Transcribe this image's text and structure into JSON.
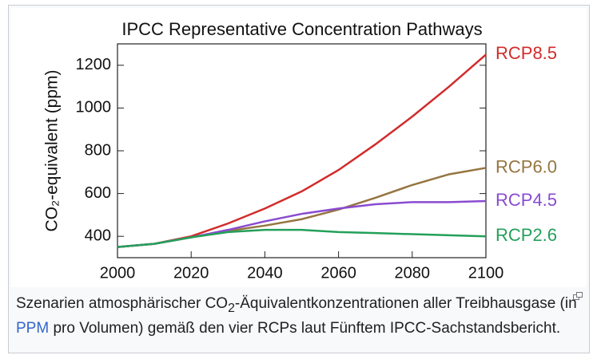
{
  "chart_data": {
    "type": "line",
    "title": "IPCC Representative Concentration Pathways",
    "y_label": "CO₂-equivalent (ppm)",
    "x": [
      2000,
      2010,
      2020,
      2030,
      2040,
      2050,
      2060,
      2070,
      2080,
      2090,
      2100
    ],
    "series": [
      {
        "name": "RCP8.5",
        "color": "#d22b2b",
        "values": [
          350,
          365,
          400,
          460,
          530,
          610,
          710,
          830,
          960,
          1100,
          1250
        ]
      },
      {
        "name": "RCP6.0",
        "color": "#957540",
        "values": [
          350,
          365,
          395,
          425,
          450,
          480,
          525,
          580,
          640,
          690,
          720
        ]
      },
      {
        "name": "RCP4.5",
        "color": "#8a4bd0",
        "values": [
          350,
          365,
          395,
          430,
          470,
          505,
          530,
          550,
          560,
          560,
          565
        ]
      },
      {
        "name": "RCP2.6",
        "color": "#23a05a",
        "values": [
          350,
          365,
          395,
          420,
          430,
          430,
          420,
          415,
          410,
          405,
          400
        ]
      }
    ],
    "xlim": [
      2000,
      2100
    ],
    "xticks": [
      2000,
      2020,
      2040,
      2060,
      2080,
      2100
    ],
    "ylim": [
      300,
      1300
    ],
    "yticks": [
      400,
      600,
      800,
      1000,
      1200
    ]
  },
  "caption": {
    "before": "Szenarien atmosphärischer CO",
    "sub": "2",
    "mid": "-Äquivalentkonzentra­tionen aller Treibhausgase (in ",
    "link": "PPM",
    "after": " pro Volumen) gemäß den vier RCPs laut Fünftem IPCC-Sachstandsbericht."
  }
}
